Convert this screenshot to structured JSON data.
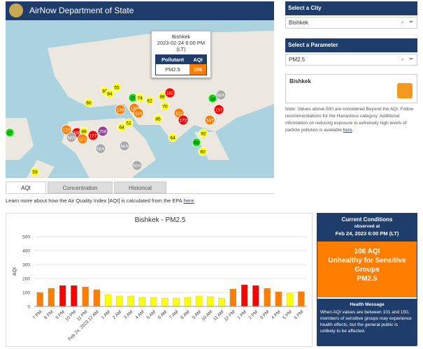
{
  "header": {
    "title": "AirNow Department of State"
  },
  "map": {
    "popup": {
      "city": "Bishkek",
      "time": "2023-02-24 6:00 PM",
      "tz": "(LT)",
      "col1": "Pollutant",
      "col2": "AQI",
      "pollutant": "PM2.5",
      "aqi": "106"
    },
    "markers": [
      {
        "label": "69",
        "color": "#ffff00"
      },
      {
        "label": "83",
        "color": "#ffff00"
      },
      {
        "label": "84",
        "color": "#ffff00"
      },
      {
        "label": "55",
        "color": "#ffff00"
      },
      {
        "label": "20",
        "color": "#00e400"
      },
      {
        "label": "74",
        "color": "#ffff00"
      },
      {
        "label": "62",
        "color": "#ffff00"
      },
      {
        "label": "130",
        "color": "#ff7e00"
      },
      {
        "label": "139",
        "color": "#ff7e00"
      },
      {
        "label": "114",
        "color": "#ff7e00"
      },
      {
        "label": "88",
        "color": "#ffff00"
      },
      {
        "label": "182",
        "color": "#ff0000"
      },
      {
        "label": "70",
        "color": "#ffff00"
      },
      {
        "label": "111",
        "color": "#ff7e00"
      },
      {
        "label": "172",
        "color": "#ff0000"
      },
      {
        "label": "85",
        "color": "#ffff00"
      },
      {
        "label": "N/A",
        "color": "#aaaaaa"
      },
      {
        "label": "18",
        "color": "#00e400"
      },
      {
        "label": "157",
        "color": "#ff0000"
      },
      {
        "label": "147",
        "color": "#ff7e00"
      },
      {
        "label": "120",
        "color": "#ff7e00"
      },
      {
        "label": "168",
        "color": "#ff0000"
      },
      {
        "label": "88",
        "color": "#ffff00"
      },
      {
        "label": "177",
        "color": "#ff0000"
      },
      {
        "label": "258",
        "color": "#8f3f97"
      },
      {
        "label": "64",
        "color": "#ffff00"
      },
      {
        "label": "52",
        "color": "#ffff00"
      },
      {
        "label": "121",
        "color": "#ff7e00"
      },
      {
        "label": "N/A",
        "color": "#aaaaaa"
      },
      {
        "label": "N/A",
        "color": "#aaaaaa"
      },
      {
        "label": "N/A",
        "color": "#aaaaaa"
      },
      {
        "label": "64",
        "color": "#ffff00"
      },
      {
        "label": "92",
        "color": "#ffff00"
      },
      {
        "label": "65",
        "color": "#00e400"
      },
      {
        "label": "60",
        "color": "#ffff00"
      },
      {
        "label": "27",
        "color": "#00e400"
      },
      {
        "label": "53",
        "color": "#ffff00"
      },
      {
        "label": "N/A",
        "color": "#aaaaaa"
      }
    ]
  },
  "sidebar": {
    "city_header": "Select a City",
    "city": "Bishkek",
    "param_header": "Select a Parameter",
    "param": "PM2.5",
    "box_title": "Bishkek",
    "clear": "×",
    "note": "Note: Values above 500 are considered Beyond the AQI. Follow recommendations for the Hazardous category. Additional information on reducing exposure to extremely high levels of particle pollution is available ",
    "note_link": "here",
    "note_end": "."
  },
  "tabs": [
    "AQI",
    "Concentration",
    "Historical"
  ],
  "learn": {
    "text": "Learn more about how the Air Quality Index [AQI] is calculated from the EPA ",
    "link": "here",
    "end": "."
  },
  "chart_data": {
    "type": "bar",
    "title": "Bishkek - PM2.5",
    "y_label": "AQI",
    "categories": [
      "7 PM",
      "8 PM",
      "9 PM",
      "10 PM",
      "11 PM",
      "Feb 24, 2023 12 AM",
      "1 AM",
      "2 AM",
      "3 AM",
      "4 AM",
      "5 AM",
      "6 AM",
      "7 AM",
      "8 AM",
      "9 AM",
      "10 AM",
      "11 AM",
      "12 PM",
      "1 PM",
      "2 PM",
      "3 PM",
      "4 PM",
      "5 PM",
      "6 PM"
    ],
    "values": [
      100,
      130,
      150,
      150,
      140,
      120,
      85,
      75,
      75,
      65,
      65,
      60,
      60,
      65,
      75,
      70,
      60,
      125,
      155,
      150,
      130,
      105,
      95,
      106
    ],
    "colors": [
      "#ff7e00",
      "#ff7e00",
      "#ff0000",
      "#ff0000",
      "#ff7e00",
      "#ff7e00",
      "#ffff00",
      "#ffff00",
      "#ffff00",
      "#ffff00",
      "#ffff00",
      "#ffff00",
      "#ffff00",
      "#ffff00",
      "#ffff00",
      "#ffff00",
      "#ffff00",
      "#ff7e00",
      "#ff0000",
      "#ff0000",
      "#ff7e00",
      "#ff7e00",
      "#ffff00",
      "#ff7e00"
    ],
    "ylim": [
      0,
      500
    ],
    "yticks": [
      0,
      100,
      200,
      300,
      400,
      500
    ],
    "grid": true
  },
  "current": {
    "title": "Current Conditions",
    "observed": "observed at",
    "time": "Feb 24, 2023 6:00 PM (LT)",
    "aqi": "106 AQI",
    "category1": "Unhealthy for Sensitive",
    "category2": "Groups",
    "param": "PM2.5",
    "health_title": "Health Message",
    "health": "When AQI values are between 101 and 150, members of sensitive groups may experience health effects, but the general public is unlikely to be affected."
  }
}
